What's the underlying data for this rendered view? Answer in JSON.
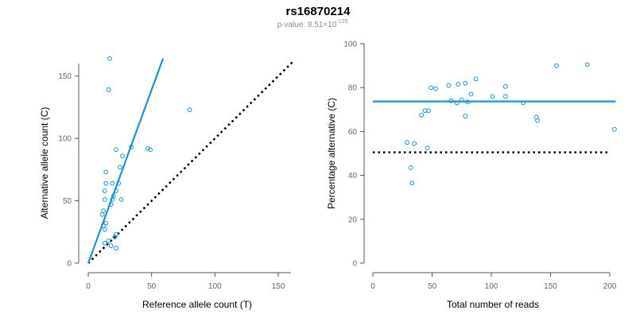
{
  "figure": {
    "title": "rs16870214",
    "subtitle_prefix": "p-value: 8.51×10",
    "subtitle_exponent": "-125"
  },
  "colors": {
    "points": "#1f8fd6",
    "fit_line": "#1f8fd6",
    "reference_line": "#000000"
  },
  "chart_data": [
    {
      "type": "scatter",
      "xlabel": "Reference allele count (T)",
      "ylabel": "Alternative allele count (C)",
      "xlim": [
        0,
        160
      ],
      "ylim": [
        0,
        160
      ],
      "xticks": [
        0,
        50,
        100,
        150
      ],
      "yticks": [
        0,
        50,
        100,
        150
      ],
      "points": [
        {
          "x": 17,
          "y": 164
        },
        {
          "x": 16,
          "y": 139
        },
        {
          "x": 80,
          "y": 123
        },
        {
          "x": 47,
          "y": 92
        },
        {
          "x": 49,
          "y": 91
        },
        {
          "x": 22,
          "y": 91
        },
        {
          "x": 34,
          "y": 93
        },
        {
          "x": 27,
          "y": 86
        },
        {
          "x": 25,
          "y": 77
        },
        {
          "x": 14,
          "y": 73
        },
        {
          "x": 14,
          "y": 64
        },
        {
          "x": 19,
          "y": 64
        },
        {
          "x": 24,
          "y": 64
        },
        {
          "x": 13,
          "y": 58
        },
        {
          "x": 22,
          "y": 58
        },
        {
          "x": 20,
          "y": 54
        },
        {
          "x": 13,
          "y": 51
        },
        {
          "x": 19,
          "y": 51
        },
        {
          "x": 26,
          "y": 51
        },
        {
          "x": 18,
          "y": 47
        },
        {
          "x": 12,
          "y": 42
        },
        {
          "x": 11,
          "y": 39
        },
        {
          "x": 14,
          "y": 32
        },
        {
          "x": 12,
          "y": 30
        },
        {
          "x": 13,
          "y": 27
        },
        {
          "x": 22,
          "y": 23
        },
        {
          "x": 21,
          "y": 21
        },
        {
          "x": 16,
          "y": 18
        },
        {
          "x": 13,
          "y": 16
        },
        {
          "x": 18,
          "y": 14
        },
        {
          "x": 22,
          "y": 12
        }
      ],
      "fit_line": {
        "from": [
          0,
          0
        ],
        "to": [
          59,
          164
        ]
      },
      "reference_line": {
        "from": [
          0,
          0
        ],
        "to": [
          162,
          162
        ],
        "style": "dotted"
      }
    },
    {
      "type": "scatter",
      "xlabel": "Total number of reads",
      "ylabel": "Percentage alternative (C)",
      "xlim": [
        0,
        200
      ],
      "ylim": [
        0,
        100
      ],
      "xticks": [
        0,
        50,
        100,
        150,
        200
      ],
      "yticks": [
        0,
        20,
        40,
        60,
        80,
        100
      ],
      "points": [
        {
          "x": 181,
          "y": 90.5
        },
        {
          "x": 155,
          "y": 90
        },
        {
          "x": 87,
          "y": 84
        },
        {
          "x": 78,
          "y": 82
        },
        {
          "x": 72,
          "y": 81.5
        },
        {
          "x": 64,
          "y": 81
        },
        {
          "x": 112,
          "y": 80.5
        },
        {
          "x": 49,
          "y": 80
        },
        {
          "x": 53,
          "y": 79.5
        },
        {
          "x": 83,
          "y": 77
        },
        {
          "x": 101,
          "y": 76
        },
        {
          "x": 112,
          "y": 76
        },
        {
          "x": 75,
          "y": 74.5
        },
        {
          "x": 66,
          "y": 74
        },
        {
          "x": 80,
          "y": 73.5
        },
        {
          "x": 71,
          "y": 73
        },
        {
          "x": 127,
          "y": 73
        },
        {
          "x": 44,
          "y": 69.5
        },
        {
          "x": 47,
          "y": 69.5
        },
        {
          "x": 41,
          "y": 67.5
        },
        {
          "x": 78,
          "y": 67
        },
        {
          "x": 138,
          "y": 66.5
        },
        {
          "x": 139,
          "y": 65
        },
        {
          "x": 204,
          "y": 61
        },
        {
          "x": 29,
          "y": 55
        },
        {
          "x": 35,
          "y": 54.5
        },
        {
          "x": 46,
          "y": 52.5
        },
        {
          "x": 32,
          "y": 43.5
        },
        {
          "x": 33,
          "y": 36.5
        }
      ],
      "fit_line": {
        "from": [
          0,
          73.7
        ],
        "to": [
          205,
          73.7
        ]
      },
      "reference_line": {
        "from": [
          0,
          50.5
        ],
        "to": [
          200,
          50.5
        ],
        "style": "dotted"
      }
    }
  ]
}
